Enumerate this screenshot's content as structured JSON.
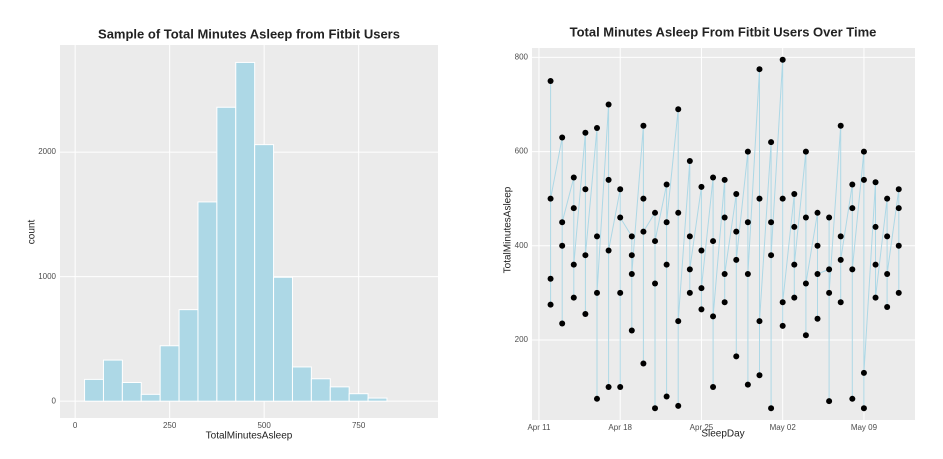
{
  "chart_data": [
    {
      "type": "histogram",
      "title": "Sample of Total Minutes Asleep from Fitbit Users",
      "x_label": "TotalMinutesAsleep",
      "y_label": "count",
      "bins": [
        25,
        75,
        125,
        175,
        225,
        275,
        325,
        375,
        425,
        475,
        525,
        575,
        625,
        675,
        725,
        775,
        825
      ],
      "values": [
        175,
        330,
        150,
        55,
        445,
        735,
        1600,
        2360,
        2720,
        2060,
        995,
        275,
        180,
        115,
        60,
        25
      ],
      "color": "#add8e6",
      "xlim": [
        -40,
        960
      ],
      "xticks": [
        0,
        250,
        500,
        750
      ],
      "ylim": [
        -135,
        2860
      ],
      "yticks": [
        0,
        1000,
        2000
      ],
      "grid": true
    },
    {
      "type": "line",
      "title": "Total Minutes Asleep From Fitbit Users Over Time",
      "x_label": "SleepDay",
      "y_label": "TotalMinutesAsleep",
      "x": [
        "Apr 12",
        "Apr 12",
        "Apr 12",
        "Apr 12",
        "Apr 13",
        "Apr 13",
        "Apr 13",
        "Apr 13",
        "Apr 14",
        "Apr 14",
        "Apr 14",
        "Apr 14",
        "Apr 15",
        "Apr 15",
        "Apr 15",
        "Apr 15",
        "Apr 16",
        "Apr 16",
        "Apr 16",
        "Apr 16",
        "Apr 17",
        "Apr 17",
        "Apr 17",
        "Apr 17",
        "Apr 18",
        "Apr 18",
        "Apr 18",
        "Apr 18",
        "Apr 19",
        "Apr 19",
        "Apr 19",
        "Apr 19",
        "Apr 20",
        "Apr 20",
        "Apr 20",
        "Apr 20",
        "Apr 21",
        "Apr 21",
        "Apr 21",
        "Apr 21",
        "Apr 22",
        "Apr 22",
        "Apr 22",
        "Apr 22",
        "Apr 23",
        "Apr 23",
        "Apr 23",
        "Apr 23",
        "Apr 24",
        "Apr 24",
        "Apr 24",
        "Apr 24",
        "Apr 25",
        "Apr 25",
        "Apr 25",
        "Apr 25",
        "Apr 26",
        "Apr 26",
        "Apr 26",
        "Apr 26",
        "Apr 27",
        "Apr 27",
        "Apr 27",
        "Apr 27",
        "Apr 28",
        "Apr 28",
        "Apr 28",
        "Apr 28",
        "Apr 29",
        "Apr 29",
        "Apr 29",
        "Apr 29",
        "Apr 30",
        "Apr 30",
        "Apr 30",
        "Apr 30",
        "May 01",
        "May 01",
        "May 01",
        "May 01",
        "May 02",
        "May 02",
        "May 02",
        "May 02",
        "May 03",
        "May 03",
        "May 03",
        "May 03",
        "May 04",
        "May 04",
        "May 04",
        "May 04",
        "May 05",
        "May 05",
        "May 05",
        "May 05",
        "May 06",
        "May 06",
        "May 06",
        "May 06",
        "May 07",
        "May 07",
        "May 07",
        "May 07",
        "May 08",
        "May 08",
        "May 08",
        "May 08",
        "May 09",
        "May 09",
        "May 09",
        "May 09",
        "May 10",
        "May 10",
        "May 10",
        "May 10",
        "May 11",
        "May 11",
        "May 11",
        "May 11",
        "May 12",
        "May 12",
        "May 12",
        "May 12"
      ],
      "values": [
        750,
        275,
        330,
        500,
        630,
        235,
        400,
        450,
        545,
        290,
        480,
        360,
        640,
        255,
        520,
        380,
        650,
        75,
        420,
        300,
        700,
        100,
        540,
        390,
        520,
        100,
        300,
        460,
        420,
        220,
        380,
        340,
        655,
        150,
        500,
        430,
        470,
        55,
        320,
        410,
        530,
        80,
        360,
        450,
        690,
        60,
        470,
        240,
        580,
        300,
        420,
        350,
        525,
        265,
        390,
        310,
        545,
        100,
        410,
        250,
        540,
        280,
        460,
        340,
        510,
        165,
        430,
        370,
        600,
        105,
        450,
        340,
        775,
        125,
        500,
        240,
        620,
        55,
        450,
        380,
        795,
        230,
        500,
        280,
        510,
        290,
        440,
        360,
        600,
        210,
        460,
        320,
        470,
        245,
        400,
        340,
        350,
        70,
        460,
        300,
        655,
        280,
        420,
        370,
        530,
        75,
        480,
        350,
        600,
        55,
        540,
        130,
        535,
        360,
        440,
        290,
        500,
        270,
        420,
        340,
        520,
        300,
        480,
        400
      ],
      "color": "#add8e6",
      "point_color": "#000000",
      "xlim": [
        "Apr 11",
        "May 13"
      ],
      "xticks": [
        "Apr 11",
        "Apr 18",
        "Apr 25",
        "May 02",
        "May 09"
      ],
      "ylim": [
        30,
        820
      ],
      "yticks": [
        200,
        400,
        600,
        800
      ],
      "grid": true
    }
  ]
}
